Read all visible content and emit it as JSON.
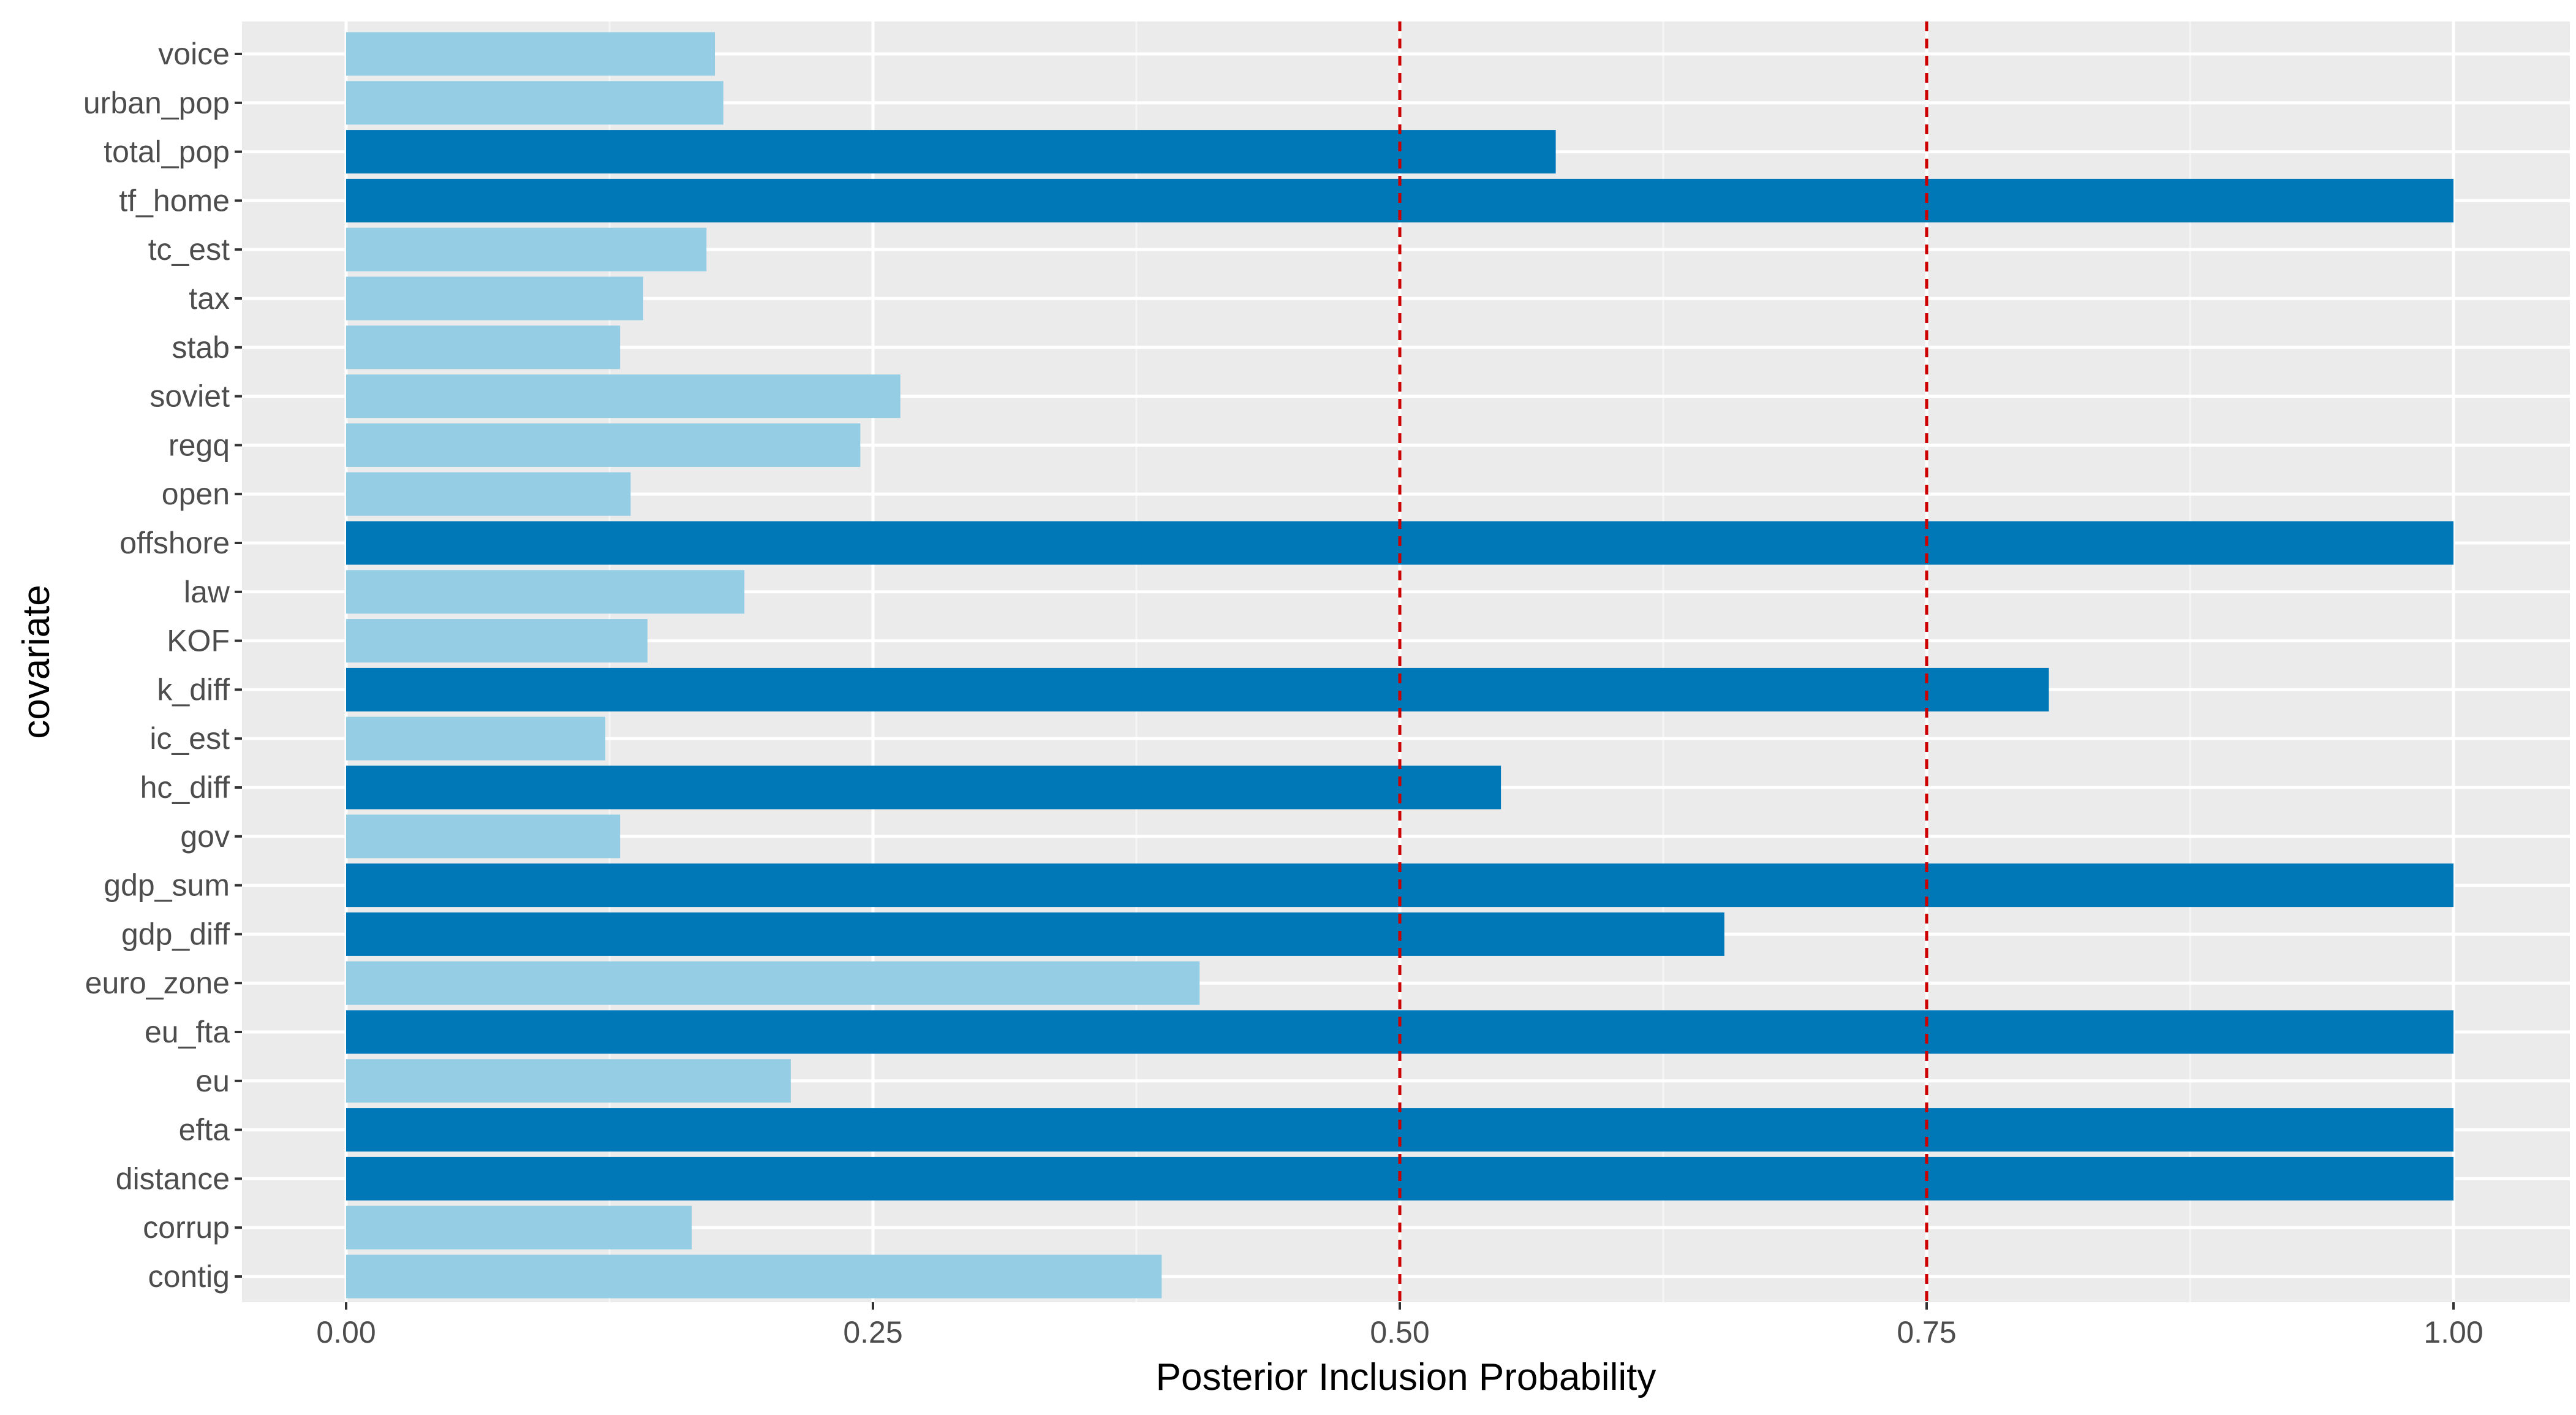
{
  "chart_data": {
    "type": "bar",
    "orientation": "horizontal",
    "title": "",
    "xlabel": "Posterior Inclusion Probability",
    "ylabel": "covariate",
    "xlim": [
      -0.05,
      1.05
    ],
    "xticks": [
      0.0,
      0.25,
      0.5,
      0.75,
      1.0
    ],
    "xtick_labels": [
      "0.00",
      "0.25",
      "0.50",
      "0.75",
      "1.00"
    ],
    "reference_lines": [
      0.5,
      0.75
    ],
    "categories": [
      "voice",
      "urban_pop",
      "total_pop",
      "tf_home",
      "tc_est",
      "tax",
      "stab",
      "soviet",
      "regq",
      "open",
      "offshore",
      "law",
      "KOF",
      "k_diff",
      "ic_est",
      "hc_diff",
      "gov",
      "gdp_sum",
      "gdp_diff",
      "euro_zone",
      "eu_fta",
      "eu",
      "efta",
      "distance",
      "corrup",
      "contig"
    ],
    "values": [
      0.175,
      0.179,
      0.574,
      1.0,
      0.171,
      0.141,
      0.13,
      0.263,
      0.244,
      0.135,
      1.0,
      0.189,
      0.143,
      0.808,
      0.123,
      0.548,
      0.13,
      1.0,
      0.654,
      0.405,
      1.0,
      0.211,
      1.0,
      1.0,
      0.164,
      0.387
    ],
    "highlight_threshold": 0.5,
    "legend": "none",
    "grid": true
  },
  "colors": {
    "panel_background": "#ebebeb",
    "grid_major": "#ffffff",
    "grid_minor": "#f5f5f5",
    "bar_high": "#0077b6",
    "bar_low": "#94cde4",
    "reference_line": "#cc0000",
    "tick_text": "#4d4d4d",
    "tick_mark": "#333333"
  }
}
